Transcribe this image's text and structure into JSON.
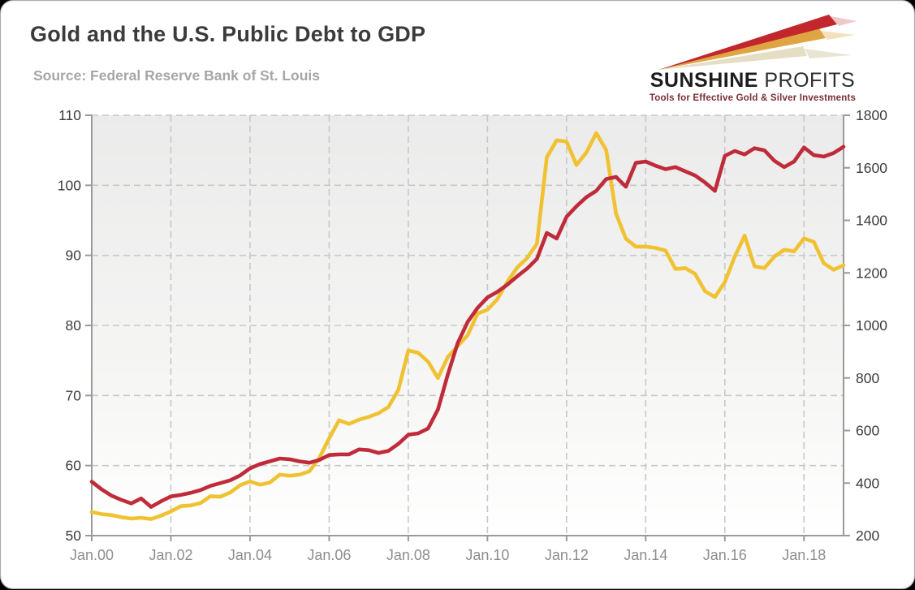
{
  "page": {
    "title": "Gold and the U.S. Public Debt to GDP",
    "source": "Source: Federal Reserve Bank of St. Louis"
  },
  "logo": {
    "name_bold": "SUNSHINE",
    "name_light": " PROFITS",
    "tagline": "Tools for Effective Gold & Silver Investments",
    "ray_colors": [
      "#c1272d",
      "#dfa542",
      "#e6dec4"
    ]
  },
  "chart_data": {
    "type": "line",
    "title": "Gold and the U.S. Public Debt to GDP",
    "x_start": "Jan 2000",
    "x_end": "Dec 2018",
    "frequency": "quarterly",
    "x_tick_labels": [
      "Jan.00",
      "Jan.02",
      "Jan.04",
      "Jan.06",
      "Jan.08",
      "Jan.10",
      "Jan.12",
      "Jan.14",
      "Jan.16",
      "Jan.18"
    ],
    "left_axis": {
      "min": 50,
      "max": 110,
      "ticks": [
        110,
        100,
        90,
        80,
        70,
        60,
        50
      ]
    },
    "right_axis": {
      "min": 200,
      "max": 1800,
      "ticks": [
        1800,
        1600,
        1400,
        1200,
        1000,
        800,
        600,
        400,
        200
      ]
    },
    "grid": {
      "h_gridlines": [
        60,
        70,
        80,
        90,
        100,
        110
      ],
      "style": "dashed"
    },
    "series": [
      {
        "name": "U.S. public debt to GDP (%)",
        "axis": "left",
        "color": "#c02b3a",
        "values": [
          57.7,
          56.6,
          55.7,
          55.1,
          54.6,
          55.3,
          54.1,
          54.9,
          55.6,
          55.8,
          56.1,
          56.5,
          57.1,
          57.5,
          57.9,
          58.6,
          59.6,
          60.2,
          60.6,
          61.0,
          60.9,
          60.6,
          60.4,
          60.8,
          61.5,
          61.6,
          61.6,
          62.3,
          62.2,
          61.8,
          62.1,
          63.1,
          64.4,
          64.6,
          65.3,
          68.0,
          73.0,
          77.5,
          80.5,
          82.5,
          84.0,
          84.8,
          85.8,
          87.0,
          88.1,
          89.5,
          93.2,
          92.4,
          95.5,
          97.0,
          98.3,
          99.2,
          100.9,
          101.2,
          99.8,
          103.2,
          103.4,
          102.8,
          102.3,
          102.6,
          102.0,
          101.4,
          100.4,
          99.2,
          104.2,
          104.9,
          104.4,
          105.3,
          105.0,
          103.5,
          102.6,
          103.4,
          105.4,
          104.3,
          104.1,
          104.6,
          105.5
        ]
      },
      {
        "name": "Gold price (USD per ounce)",
        "axis": "right",
        "color": "#f0c232",
        "values": [
          290,
          282,
          278,
          270,
          265,
          268,
          263,
          276,
          292,
          312,
          315,
          324,
          350,
          348,
          364,
          392,
          406,
          394,
          402,
          432,
          428,
          432,
          445,
          495,
          570,
          639,
          625,
          641,
          652,
          666,
          690,
          755,
          905,
          896,
          862,
          800,
          880,
          922,
          963,
          1045,
          1060,
          1100,
          1165,
          1220,
          1256,
          1310,
          1640,
          1705,
          1700,
          1611,
          1658,
          1732,
          1668,
          1425,
          1330,
          1300,
          1300,
          1295,
          1285,
          1215,
          1218,
          1196,
          1130,
          1108,
          1165,
          1262,
          1342,
          1225,
          1218,
          1262,
          1288,
          1282,
          1331,
          1318,
          1237,
          1212,
          1229
        ]
      }
    ],
    "plot": {
      "bg_gradient_top": "#ebebeb",
      "bg_gradient_bottom": "#ffffff",
      "gridline_color": "#c8c8c8",
      "axis_color": "#9a9a9a",
      "y_label_color": "#3c3c3c",
      "x_label_color": "#8d8d8d"
    }
  }
}
